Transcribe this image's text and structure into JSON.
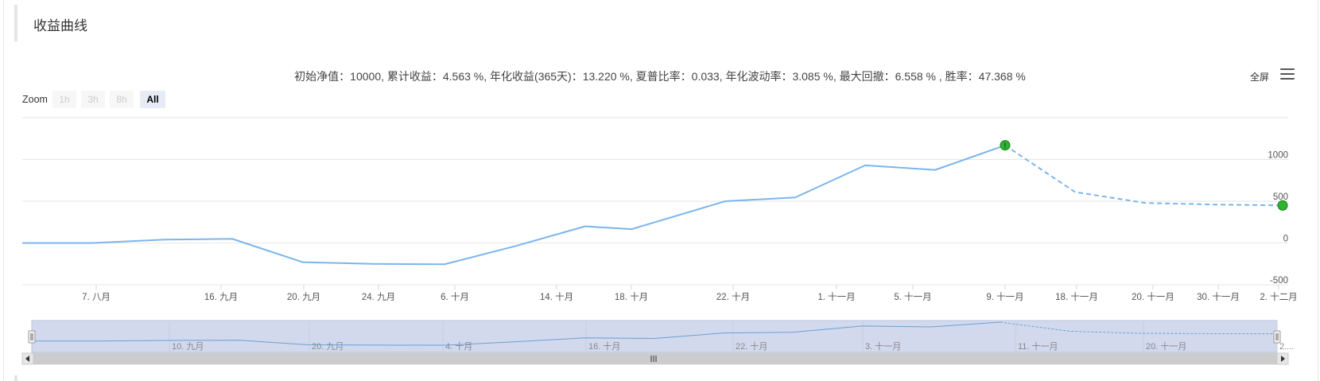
{
  "panel": {
    "title": "收益曲线"
  },
  "stats_text": "初始净值：10000, 累计收益：4.563 %, 年化收益(365天)：13.220 %, 夏普比率：0.033, 年化波动率：3.085 %, 最大回撤：6.558 % , 胜率：47.368 %",
  "toolbar": {
    "fullscreen_label": "全屏",
    "menu_icon": "hamburger-menu-icon"
  },
  "zoom": {
    "label": "Zoom",
    "buttons": [
      {
        "label": "1h",
        "active": false
      },
      {
        "label": "3h",
        "active": false
      },
      {
        "label": "8h",
        "active": false
      },
      {
        "label": "All",
        "active": true
      }
    ]
  },
  "colors": {
    "line": "#7cb5ec",
    "marker": "#2db52d",
    "navigator_mask": "#d2d9ed",
    "scrollbar": "#cccccc"
  },
  "chart_data": {
    "type": "line",
    "x_tick_labels": [
      "7. 八月",
      "16. 九月",
      "20. 九月",
      "24. 九月",
      "6. 十月",
      "14. 十月",
      "18. 十月",
      "22. 十月",
      "1. 十一月",
      "5. 十一月",
      "9. 十一月",
      "18. 十一月",
      "20. 十一月",
      "30. 十一月",
      "2. 十二月"
    ],
    "y_tick_labels": [
      "1000",
      "500",
      "0",
      "-500"
    ],
    "ylim": [
      -500,
      1500
    ],
    "y_ticks": [
      -500,
      0,
      500,
      1000
    ],
    "series": [
      {
        "style": "solid",
        "points": [
          [
            0,
            0
          ],
          [
            1,
            0
          ],
          [
            2,
            40
          ],
          [
            3,
            50
          ],
          [
            4,
            -230
          ],
          [
            5,
            -250
          ],
          [
            6,
            -255
          ],
          [
            7,
            -40
          ],
          [
            8,
            200
          ],
          [
            9,
            165
          ],
          [
            10,
            500
          ],
          [
            11,
            545
          ],
          [
            12,
            930
          ],
          [
            13,
            875
          ],
          [
            14,
            1170
          ]
        ]
      },
      {
        "style": "dashed",
        "points": [
          [
            14,
            1170
          ],
          [
            15,
            610
          ],
          [
            16,
            480
          ],
          [
            17,
            460
          ],
          [
            18,
            450
          ]
        ]
      }
    ],
    "markers": [
      {
        "x": 14,
        "y": 1170,
        "label": "!"
      },
      {
        "x": 18,
        "y": 450,
        "label": ""
      }
    ],
    "navigator_tick_labels": [
      "10. 九月",
      "20. 九月",
      "4. 十月",
      "16. 十月",
      "22. 十月",
      "3. 十一月",
      "11. 十一月",
      "20. 十一月",
      "2...."
    ]
  }
}
